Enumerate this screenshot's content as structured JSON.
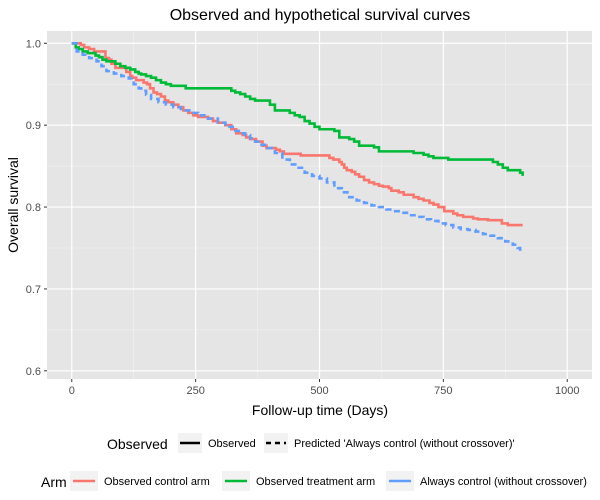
{
  "chart_data": {
    "type": "line",
    "title": "Observed and hypothetical survival curves",
    "xlabel": "Follow-up time (Days)",
    "ylabel": "Overall survival",
    "xlim": [
      -50,
      1050
    ],
    "ylim": [
      0.59,
      1.015
    ],
    "xticks": [
      0,
      250,
      500,
      750,
      1000
    ],
    "xtick_labels": [
      "0",
      "250",
      "500",
      "750",
      "1000"
    ],
    "yticks": [
      0.6,
      0.7,
      0.8,
      0.9,
      1.0
    ],
    "ytick_labels": [
      "0.6",
      "0.7",
      "0.8",
      "0.9",
      "1.0"
    ],
    "grid": true,
    "background": "#e5e5e5",
    "series": [
      {
        "name": "Observed control arm",
        "color": "#F8766D",
        "linetype": "solid",
        "x": [
          0,
          12,
          18,
          25,
          35,
          45,
          52,
          58,
          62,
          68,
          75,
          80,
          88,
          95,
          102,
          110,
          118,
          122,
          130,
          138,
          145,
          152,
          158,
          165,
          172,
          180,
          188,
          195,
          205,
          215,
          225,
          235,
          245,
          255,
          265,
          275,
          285,
          295,
          300,
          310,
          322,
          332,
          335,
          345,
          352,
          360,
          372,
          385,
          393,
          400,
          412,
          420,
          428,
          440,
          452,
          462,
          490,
          510,
          520,
          528,
          540,
          545,
          550,
          555,
          565,
          572,
          580,
          590,
          600,
          610,
          620,
          628,
          640,
          645,
          650,
          660,
          670,
          680,
          690,
          700,
          710,
          722,
          730,
          740,
          748,
          752,
          760,
          770,
          778,
          790,
          800,
          810,
          820,
          830,
          840,
          848,
          860,
          868,
          870,
          880,
          890,
          900,
          910
        ],
        "y": [
          1.0,
          1.0,
          0.998,
          0.995,
          0.993,
          0.99,
          0.99,
          0.99,
          0.99,
          0.982,
          0.98,
          0.975,
          0.97,
          0.97,
          0.97,
          0.965,
          0.96,
          0.958,
          0.955,
          0.955,
          0.952,
          0.95,
          0.945,
          0.94,
          0.938,
          0.935,
          0.93,
          0.928,
          0.925,
          0.922,
          0.918,
          0.915,
          0.912,
          0.91,
          0.91,
          0.908,
          0.905,
          0.903,
          0.903,
          0.9,
          0.895,
          0.89,
          0.89,
          0.888,
          0.885,
          0.883,
          0.88,
          0.875,
          0.872,
          0.872,
          0.87,
          0.868,
          0.865,
          0.865,
          0.865,
          0.863,
          0.863,
          0.863,
          0.86,
          0.858,
          0.855,
          0.852,
          0.848,
          0.845,
          0.843,
          0.84,
          0.837,
          0.833,
          0.83,
          0.828,
          0.826,
          0.825,
          0.823,
          0.82,
          0.82,
          0.818,
          0.815,
          0.815,
          0.812,
          0.81,
          0.808,
          0.805,
          0.803,
          0.8,
          0.8,
          0.795,
          0.795,
          0.792,
          0.79,
          0.788,
          0.788,
          0.786,
          0.785,
          0.785,
          0.784,
          0.784,
          0.784,
          0.78,
          0.78,
          0.778,
          0.778,
          0.778,
          0.778
        ]
      },
      {
        "name": "Observed treatment arm",
        "color": "#00BA38",
        "linetype": "solid",
        "x": [
          0,
          8,
          14,
          22,
          32,
          40,
          48,
          55,
          62,
          70,
          78,
          88,
          98,
          108,
          118,
          128,
          135,
          140,
          150,
          160,
          170,
          180,
          190,
          200,
          230,
          250,
          260,
          280,
          300,
          310,
          322,
          330,
          340,
          350,
          360,
          370,
          380,
          395,
          400,
          410,
          425,
          440,
          450,
          460,
          470,
          480,
          490,
          500,
          510,
          530,
          540,
          560,
          570,
          580,
          610,
          620,
          640,
          650,
          670,
          690,
          700,
          710,
          720,
          730,
          740,
          750,
          760,
          800,
          840,
          850,
          860,
          870,
          880,
          890,
          900,
          905,
          910
        ],
        "y": [
          1.0,
          0.995,
          0.993,
          0.99,
          0.988,
          0.988,
          0.985,
          0.983,
          0.98,
          0.978,
          0.978,
          0.975,
          0.972,
          0.97,
          0.968,
          0.965,
          0.963,
          0.962,
          0.96,
          0.958,
          0.955,
          0.952,
          0.95,
          0.948,
          0.945,
          0.945,
          0.945,
          0.945,
          0.945,
          0.945,
          0.942,
          0.94,
          0.938,
          0.935,
          0.932,
          0.93,
          0.93,
          0.93,
          0.925,
          0.918,
          0.918,
          0.915,
          0.912,
          0.91,
          0.905,
          0.902,
          0.898,
          0.895,
          0.895,
          0.893,
          0.885,
          0.883,
          0.88,
          0.875,
          0.873,
          0.868,
          0.868,
          0.868,
          0.868,
          0.866,
          0.866,
          0.864,
          0.862,
          0.86,
          0.86,
          0.86,
          0.858,
          0.858,
          0.858,
          0.855,
          0.852,
          0.848,
          0.845,
          0.845,
          0.845,
          0.842,
          0.838
        ]
      },
      {
        "name": "Always control (without crossover)",
        "color": "#619CFF",
        "linetype": "dashed",
        "x": [
          0,
          10,
          22,
          35,
          50,
          60,
          70,
          85,
          100,
          115,
          125,
          135,
          140,
          150,
          160,
          175,
          190,
          205,
          220,
          240,
          255,
          275,
          295,
          310,
          325,
          340,
          350,
          360,
          370,
          380,
          395,
          410,
          425,
          440,
          455,
          470,
          485,
          500,
          515,
          530,
          545,
          560,
          575,
          590,
          605,
          620,
          635,
          650,
          665,
          680,
          695,
          710,
          725,
          740,
          755,
          770,
          785,
          800,
          815,
          830,
          845,
          860,
          875,
          890,
          900,
          905
        ],
        "y": [
          1.0,
          0.99,
          0.986,
          0.982,
          0.978,
          0.972,
          0.966,
          0.963,
          0.96,
          0.957,
          0.95,
          0.945,
          0.942,
          0.937,
          0.932,
          0.928,
          0.925,
          0.922,
          0.918,
          0.915,
          0.912,
          0.908,
          0.903,
          0.898,
          0.893,
          0.89,
          0.888,
          0.884,
          0.88,
          0.876,
          0.872,
          0.866,
          0.858,
          0.852,
          0.848,
          0.842,
          0.838,
          0.835,
          0.83,
          0.823,
          0.818,
          0.812,
          0.808,
          0.805,
          0.802,
          0.8,
          0.797,
          0.795,
          0.793,
          0.79,
          0.788,
          0.785,
          0.783,
          0.78,
          0.778,
          0.775,
          0.773,
          0.772,
          0.77,
          0.767,
          0.765,
          0.762,
          0.758,
          0.754,
          0.75,
          0.746
        ]
      }
    ],
    "legends": {
      "observed": {
        "title": "Observed",
        "items": [
          {
            "label": "Observed",
            "linetype": "solid"
          },
          {
            "label": "Predicted 'Always control (without crossover)'",
            "linetype": "dashed"
          }
        ]
      },
      "arm": {
        "title": "Arm",
        "items": [
          {
            "label": "Observed control arm",
            "color": "#F8766D"
          },
          {
            "label": "Observed treatment arm",
            "color": "#00BA38"
          },
          {
            "label": "Always control (without crossover)",
            "color": "#619CFF"
          }
        ]
      }
    }
  }
}
